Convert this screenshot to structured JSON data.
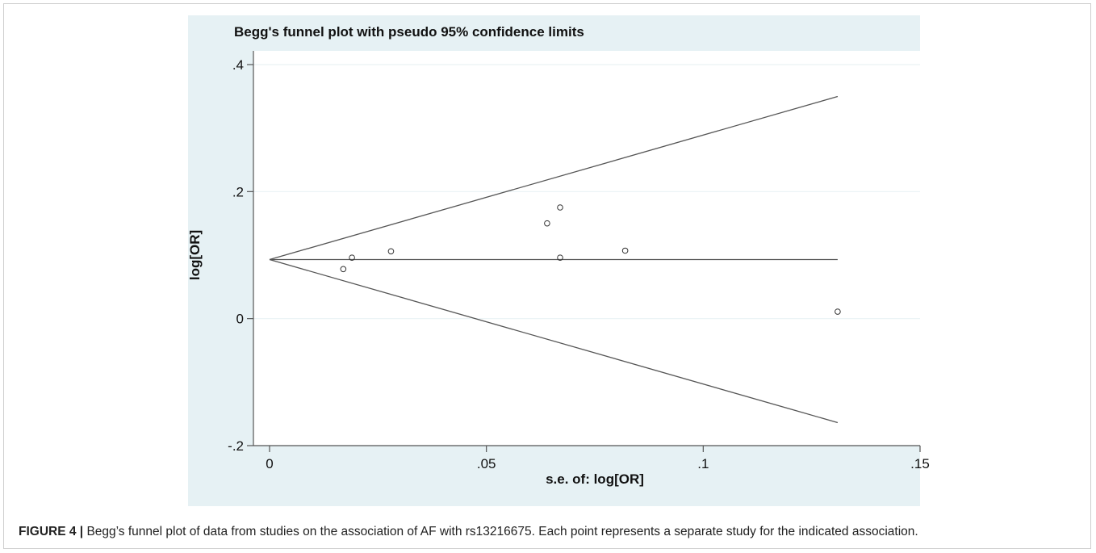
{
  "figure": {
    "caption_label": "FIGURE 4 |",
    "caption_text": " Begg’s funnel plot of data from studies on the association of AF with rs13216675. Each point represents a separate study for the indicated association."
  },
  "chart_data": {
    "type": "scatter",
    "title": "Begg's funnel plot with pseudo 95% confidence limits",
    "xlabel": "s.e. of: log[OR]",
    "ylabel": "log[OR]",
    "xlim": [
      0,
      0.15
    ],
    "ylim": [
      -0.2,
      0.4
    ],
    "x_ticks": [
      {
        "value": 0,
        "label": "0"
      },
      {
        "value": 0.05,
        "label": ".05"
      },
      {
        "value": 0.1,
        "label": ".1"
      },
      {
        "value": 0.15,
        "label": ".15"
      }
    ],
    "y_ticks": [
      {
        "value": -0.2,
        "label": "-.2"
      },
      {
        "value": 0,
        "label": "0"
      },
      {
        "value": 0.2,
        "label": ".2"
      },
      {
        "value": 0.4,
        "label": ".4"
      }
    ],
    "grid": true,
    "pooled_estimate": 0.093,
    "funnel_max_se": 0.131,
    "points": [
      {
        "x": 0.017,
        "y": 0.078
      },
      {
        "x": 0.019,
        "y": 0.096
      },
      {
        "x": 0.028,
        "y": 0.106
      },
      {
        "x": 0.064,
        "y": 0.15
      },
      {
        "x": 0.067,
        "y": 0.175
      },
      {
        "x": 0.067,
        "y": 0.096
      },
      {
        "x": 0.082,
        "y": 0.107
      },
      {
        "x": 0.131,
        "y": 0.011
      }
    ],
    "colors": {
      "panel_bg": "#e6f1f4",
      "plot_bg": "#ffffff",
      "line": "#555555",
      "grid": "#eaf2f4"
    }
  }
}
